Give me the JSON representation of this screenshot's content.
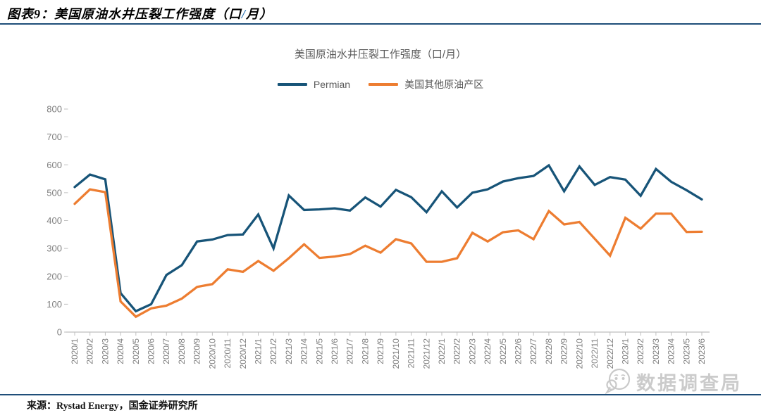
{
  "header": {
    "prefix": "图表9：美国原油水井压裂工作强度（口",
    "slash": "/",
    "suffix": "月）"
  },
  "chart_data": {
    "type": "line",
    "title": "美国原油水井压裂工作强度（口/月）",
    "xlabel": "",
    "ylabel": "",
    "ylim": [
      0,
      800
    ],
    "yticks": [
      0,
      100,
      200,
      300,
      400,
      500,
      600,
      700,
      800
    ],
    "grid": false,
    "legend_position": "top",
    "categories": [
      "2020/1",
      "2020/2",
      "2020/3",
      "2020/4",
      "2020/5",
      "2020/6",
      "2020/7",
      "2020/8",
      "2020/9",
      "2020/10",
      "2020/11",
      "2020/12",
      "2021/1",
      "2021/2",
      "2021/3",
      "2021/4",
      "2021/5",
      "2021/6",
      "2021/7",
      "2021/8",
      "2021/9",
      "2021/10",
      "2021/11",
      "2021/12",
      "2022/1",
      "2022/2",
      "2022/3",
      "2022/4",
      "2022/5",
      "2022/6",
      "2022/7",
      "2022/8",
      "2022/9",
      "2022/10",
      "2022/11",
      "2022/12",
      "2023/1",
      "2023/2",
      "2023/3",
      "2023/4",
      "2023/5",
      "2023/6"
    ],
    "series": [
      {
        "name": "Permian",
        "color": "#175478",
        "values": [
          520,
          565,
          548,
          140,
          75,
          100,
          205,
          240,
          325,
          332,
          348,
          350,
          422,
          300,
          490,
          438,
          440,
          444,
          436,
          483,
          450,
          510,
          484,
          430,
          505,
          447,
          500,
          512,
          540,
          552,
          560,
          598,
          505,
          594,
          528,
          556,
          547,
          489,
          585,
          539,
          509,
          476
        ]
      },
      {
        "name": "美国其他原油产区",
        "color": "#ED7D31",
        "values": [
          460,
          512,
          502,
          110,
          55,
          85,
          95,
          120,
          162,
          172,
          225,
          216,
          255,
          220,
          265,
          315,
          266,
          271,
          280,
          310,
          285,
          333,
          318,
          252,
          252,
          265,
          356,
          325,
          358,
          365,
          333,
          434,
          386,
          395,
          335,
          274,
          410,
          371,
          425,
          425,
          359,
          360
        ]
      }
    ],
    "axis_color": "#BFBFBF",
    "tick_label_color": "#7F7F7F"
  },
  "watermark": {
    "text": "数据调查局"
  },
  "footer": {
    "source": "来源：Rystad Energy，国金证券研究所"
  }
}
